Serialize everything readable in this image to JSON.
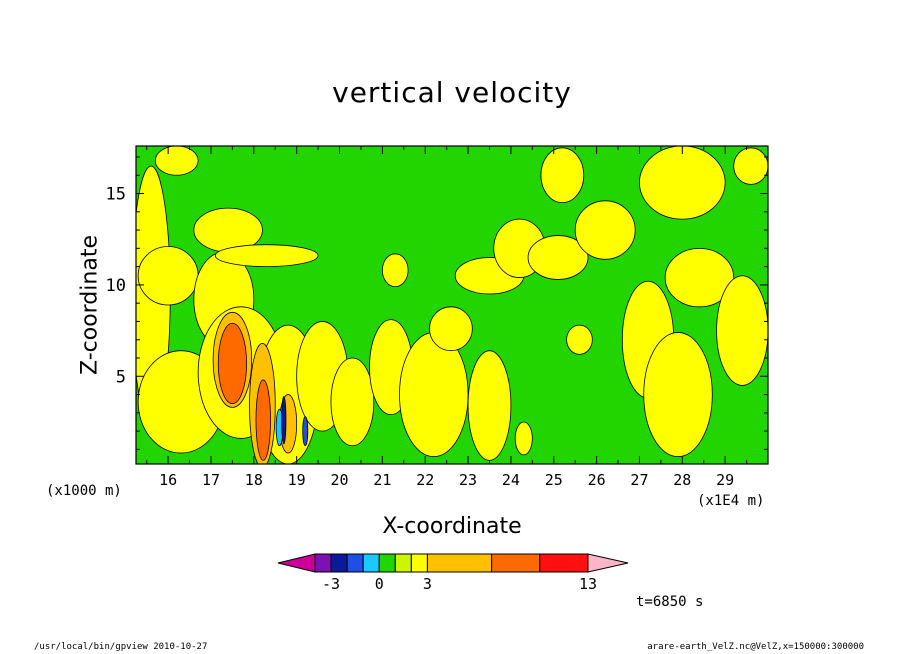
{
  "chart_data": {
    "type": "heatmap",
    "title": "vertical velocity",
    "xlabel": "X-coordinate",
    "ylabel": "Z-coordinate",
    "x_unit_left": "(x1000 m)",
    "x_unit_right": "(x1E4 m)",
    "x_ticks": [
      "16",
      "17",
      "18",
      "19",
      "20",
      "21",
      "22",
      "23",
      "24",
      "25",
      "26",
      "27",
      "28",
      "29"
    ],
    "x_tick_values": [
      16,
      17,
      18,
      19,
      20,
      21,
      22,
      23,
      24,
      25,
      26,
      27,
      28,
      29
    ],
    "xlim": [
      15.25,
      30.0
    ],
    "y_ticks": [
      "5",
      "10",
      "15"
    ],
    "y_tick_values": [
      5,
      10,
      15
    ],
    "ylim": [
      0.2,
      17.6
    ],
    "grid": false,
    "colorbar": {
      "labels": [
        "-3",
        "0",
        "3",
        "13"
      ],
      "label_positions": [
        -3,
        0,
        3,
        13
      ],
      "levels": [
        -5,
        -4,
        -3,
        -2,
        -1,
        0,
        1,
        2,
        3,
        7,
        10,
        13,
        16
      ],
      "colors": [
        "#cc0099",
        "#7a12b4",
        "#0a1a9a",
        "#1f4fe6",
        "#1bc8ff",
        "#22d400",
        "#ccf500",
        "#ffff00",
        "#ffc000",
        "#ff6a00",
        "#ff1010",
        "#ff7a7a",
        "#ffb4c8"
      ]
    },
    "background_level_color": "#22d400",
    "regions": [
      {
        "level": "0-1",
        "color": "#ffff00",
        "cx": 15.6,
        "cy": 9.5,
        "rx": 0.45,
        "ry": 7.0
      },
      {
        "level": "0-1",
        "color": "#ffff00",
        "cx": 16.0,
        "cy": 10.5,
        "rx": 0.7,
        "ry": 1.6
      },
      {
        "level": "0-1",
        "color": "#ffff00",
        "cx": 16.3,
        "cy": 3.6,
        "rx": 1.0,
        "ry": 2.8
      },
      {
        "level": "0-1",
        "color": "#ffff00",
        "cx": 16.2,
        "cy": 16.8,
        "rx": 0.5,
        "ry": 0.8
      },
      {
        "level": "0-1",
        "color": "#ffff00",
        "cx": 17.4,
        "cy": 13.0,
        "rx": 0.8,
        "ry": 1.2
      },
      {
        "level": "0-1",
        "color": "#ffff00",
        "cx": 17.3,
        "cy": 9.2,
        "rx": 0.7,
        "ry": 2.6
      },
      {
        "level": "0-1",
        "color": "#ffff00",
        "cx": 18.3,
        "cy": 11.6,
        "rx": 1.2,
        "ry": 0.6
      },
      {
        "level": "0-1",
        "color": "#ffff00",
        "cx": 17.7,
        "cy": 5.2,
        "rx": 1.0,
        "ry": 3.6
      },
      {
        "level": "0-1",
        "color": "#ffff00",
        "cx": 18.8,
        "cy": 4.0,
        "rx": 0.7,
        "ry": 3.8
      },
      {
        "level": "0-1",
        "color": "#ffff00",
        "cx": 19.6,
        "cy": 5.0,
        "rx": 0.6,
        "ry": 3.0
      },
      {
        "level": "0-1",
        "color": "#ffff00",
        "cx": 20.3,
        "cy": 3.6,
        "rx": 0.5,
        "ry": 2.4
      },
      {
        "level": "0-1",
        "color": "#ffff00",
        "cx": 21.2,
        "cy": 5.5,
        "rx": 0.5,
        "ry": 2.6
      },
      {
        "level": "0-1",
        "color": "#ffff00",
        "cx": 21.3,
        "cy": 10.8,
        "rx": 0.3,
        "ry": 0.9
      },
      {
        "level": "0-1",
        "color": "#ffff00",
        "cx": 22.2,
        "cy": 4.0,
        "rx": 0.8,
        "ry": 3.4
      },
      {
        "level": "0-1",
        "color": "#ffff00",
        "cx": 22.6,
        "cy": 7.6,
        "rx": 0.5,
        "ry": 1.2
      },
      {
        "level": "0-1",
        "color": "#ffff00",
        "cx": 23.5,
        "cy": 3.4,
        "rx": 0.5,
        "ry": 3.0
      },
      {
        "level": "0-1",
        "color": "#ffff00",
        "cx": 23.5,
        "cy": 10.5,
        "rx": 0.8,
        "ry": 1.0
      },
      {
        "level": "0-1",
        "color": "#ffff00",
        "cx": 24.2,
        "cy": 12.0,
        "rx": 0.6,
        "ry": 1.6
      },
      {
        "level": "0-1",
        "color": "#ffff00",
        "cx": 24.3,
        "cy": 1.6,
        "rx": 0.2,
        "ry": 0.9
      },
      {
        "level": "0-1",
        "color": "#ffff00",
        "cx": 25.1,
        "cy": 11.5,
        "rx": 0.7,
        "ry": 1.2
      },
      {
        "level": "0-1",
        "color": "#ffff00",
        "cx": 25.2,
        "cy": 16.0,
        "rx": 0.5,
        "ry": 1.5
      },
      {
        "level": "0-1",
        "color": "#ffff00",
        "cx": 26.2,
        "cy": 13.0,
        "rx": 0.7,
        "ry": 1.6
      },
      {
        "level": "0-1",
        "color": "#ffff00",
        "cx": 25.6,
        "cy": 7.0,
        "rx": 0.3,
        "ry": 0.8
      },
      {
        "level": "0-1",
        "color": "#ffff00",
        "cx": 27.2,
        "cy": 7.0,
        "rx": 0.6,
        "ry": 3.2
      },
      {
        "level": "0-1",
        "color": "#ffff00",
        "cx": 27.9,
        "cy": 4.0,
        "rx": 0.8,
        "ry": 3.4
      },
      {
        "level": "0-1",
        "color": "#ffff00",
        "cx": 28.4,
        "cy": 10.4,
        "rx": 0.8,
        "ry": 1.6
      },
      {
        "level": "0-1",
        "color": "#ffff00",
        "cx": 28.0,
        "cy": 15.6,
        "rx": 1.0,
        "ry": 2.0
      },
      {
        "level": "0-1",
        "color": "#ffff00",
        "cx": 29.4,
        "cy": 7.5,
        "rx": 0.6,
        "ry": 3.0
      },
      {
        "level": "0-1",
        "color": "#ffff00",
        "cx": 29.6,
        "cy": 16.5,
        "rx": 0.4,
        "ry": 1.0
      },
      {
        "level": "1-3",
        "color": "#ffc000",
        "cx": 17.5,
        "cy": 5.9,
        "rx": 0.45,
        "ry": 2.6
      },
      {
        "level": "1-3",
        "color": "#ffc000",
        "cx": 18.2,
        "cy": 3.4,
        "rx": 0.3,
        "ry": 3.4
      },
      {
        "level": "1-3",
        "color": "#ffc000",
        "cx": 18.8,
        "cy": 2.4,
        "rx": 0.2,
        "ry": 1.6
      },
      {
        "level": "3-7",
        "color": "#ff6a00",
        "cx": 17.5,
        "cy": 5.7,
        "rx": 0.33,
        "ry": 2.2
      },
      {
        "level": "3-7",
        "color": "#ff6a00",
        "cx": 18.22,
        "cy": 2.6,
        "rx": 0.17,
        "ry": 2.2
      },
      {
        "level": "-1-0",
        "color": "#1bc8ff",
        "cx": 18.6,
        "cy": 2.2,
        "rx": 0.08,
        "ry": 1.0
      },
      {
        "level": "-2-1",
        "color": "#1f4fe6",
        "cx": 19.2,
        "cy": 2.0,
        "rx": 0.06,
        "ry": 0.8
      },
      {
        "level": "-5-4",
        "color": "#0a1a9a",
        "cx": 18.7,
        "cy": 2.6,
        "rx": 0.05,
        "ry": 1.3
      }
    ]
  },
  "time_label": "t=6850 s",
  "footer_left": "/usr/local/bin/gpview  2010-10-27",
  "footer_right": "arare-earth_VelZ.nc@VelZ,x=150000:300000"
}
